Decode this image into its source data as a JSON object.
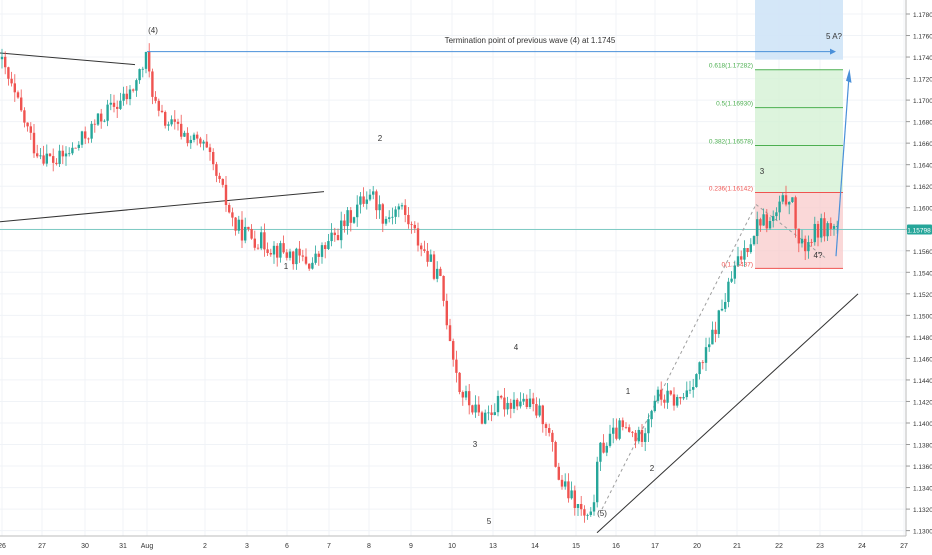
{
  "chart_data": {
    "type": "candlestick",
    "title": "",
    "xlabel": "",
    "ylabel": "",
    "ylim": [
      1.1295,
      1.1793
    ],
    "grid": true,
    "last_price": "1.15798",
    "colors": {
      "up": "#26a69a",
      "down": "#ef5350",
      "fib_red": "#ef5350",
      "fib_green": "#4caf50",
      "projection": "#4a90d9",
      "horizontal": "#80cbc4",
      "trend": "#333333",
      "label": "#333333"
    },
    "y_ticks": [
      "1.17800",
      "1.17600",
      "1.17400",
      "1.17200",
      "1.17000",
      "1.16800",
      "1.16600",
      "1.16400",
      "1.16200",
      "1.16000",
      "1.15800",
      "1.15600",
      "1.15400",
      "1.15200",
      "1.15000",
      "1.14800",
      "1.14600",
      "1.14400",
      "1.14200",
      "1.14000",
      "1.13800",
      "1.13600",
      "1.13400",
      "1.13200",
      "1.13000"
    ],
    "x_ticks": [
      "26",
      "27",
      "30",
      "31",
      "Aug",
      "2",
      "3",
      "6",
      "7",
      "8",
      "9",
      "10",
      "13",
      "14",
      "15",
      "16",
      "17",
      "20",
      "21",
      "22",
      "23",
      "24",
      "27"
    ],
    "price_path": [
      [
        "26",
        1.1738
      ],
      [
        "27",
        1.1655
      ],
      [
        "27.5",
        1.1642
      ],
      [
        "29",
        1.1655
      ],
      [
        "30",
        1.1688
      ],
      [
        "31",
        1.1705
      ],
      [
        "Aug",
        1.1738
      ],
      [
        "Aug.5",
        1.1685
      ],
      [
        "2",
        1.1655
      ],
      [
        "2.5",
        1.1608
      ],
      [
        "3",
        1.1582
      ],
      [
        "4",
        1.1568
      ],
      [
        "6",
        1.1552
      ],
      [
        "7",
        1.1548
      ],
      [
        "7.5",
        1.158
      ],
      [
        "8",
        1.1616
      ],
      [
        "8.5",
        1.159
      ],
      [
        "9",
        1.1602
      ],
      [
        "9.5",
        1.1575
      ],
      [
        "10",
        1.1532
      ],
      [
        "11",
        1.143
      ],
      [
        "12",
        1.1405
      ],
      [
        "13",
        1.1418
      ],
      [
        "13.5",
        1.1422
      ],
      [
        "14",
        1.1405
      ],
      [
        "15",
        1.1345
      ],
      [
        "15.5",
        1.1305
      ],
      [
        "16",
        1.1375
      ],
      [
        "16.5",
        1.1395
      ],
      [
        "17",
        1.1385
      ],
      [
        "18",
        1.1425
      ],
      [
        "19",
        1.142
      ],
      [
        "20",
        1.146
      ],
      [
        "21",
        1.1543
      ],
      [
        "21.5",
        1.159
      ],
      [
        "22",
        1.1585
      ],
      [
        "22.5",
        1.1614
      ],
      [
        "23",
        1.156
      ],
      [
        "23.5",
        1.1582
      ]
    ],
    "fib_levels": [
      {
        "label": "0(1.15437)",
        "value": 1.15437
      },
      {
        "label": "0.236(1.16142)",
        "value": 1.16142
      },
      {
        "label": "0.382(1.16578)",
        "value": 1.16578
      },
      {
        "label": "0.5(1.16930)",
        "value": 1.1693
      },
      {
        "label": "0.618(1.17282)",
        "value": 1.17282
      }
    ],
    "annotations": {
      "termination_text": "Termination point of previous wave (4) at 1.1745",
      "termination_level": 1.1745,
      "wave_labels": [
        "(4)",
        "1",
        "2",
        "3",
        "4",
        "5",
        "(5)",
        "1",
        "2",
        "3",
        "4?",
        "5 A?"
      ]
    }
  }
}
